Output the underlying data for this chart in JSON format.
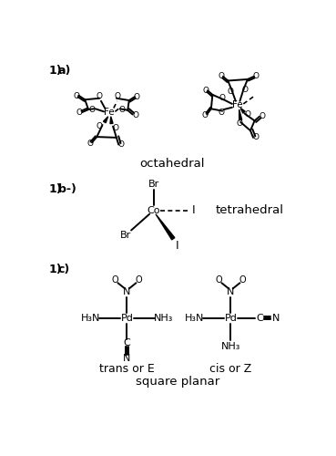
{
  "bg_color": "#ffffff",
  "octahedral_label": "octahedral",
  "tetrahedral_label": "tetrahedral",
  "trans_label": "trans or E",
  "cis_label": "cis or Z",
  "square_planar_label": "square planar",
  "label_a": "1)a)",
  "label_b": "1) b-)",
  "label_c": "1) c)"
}
